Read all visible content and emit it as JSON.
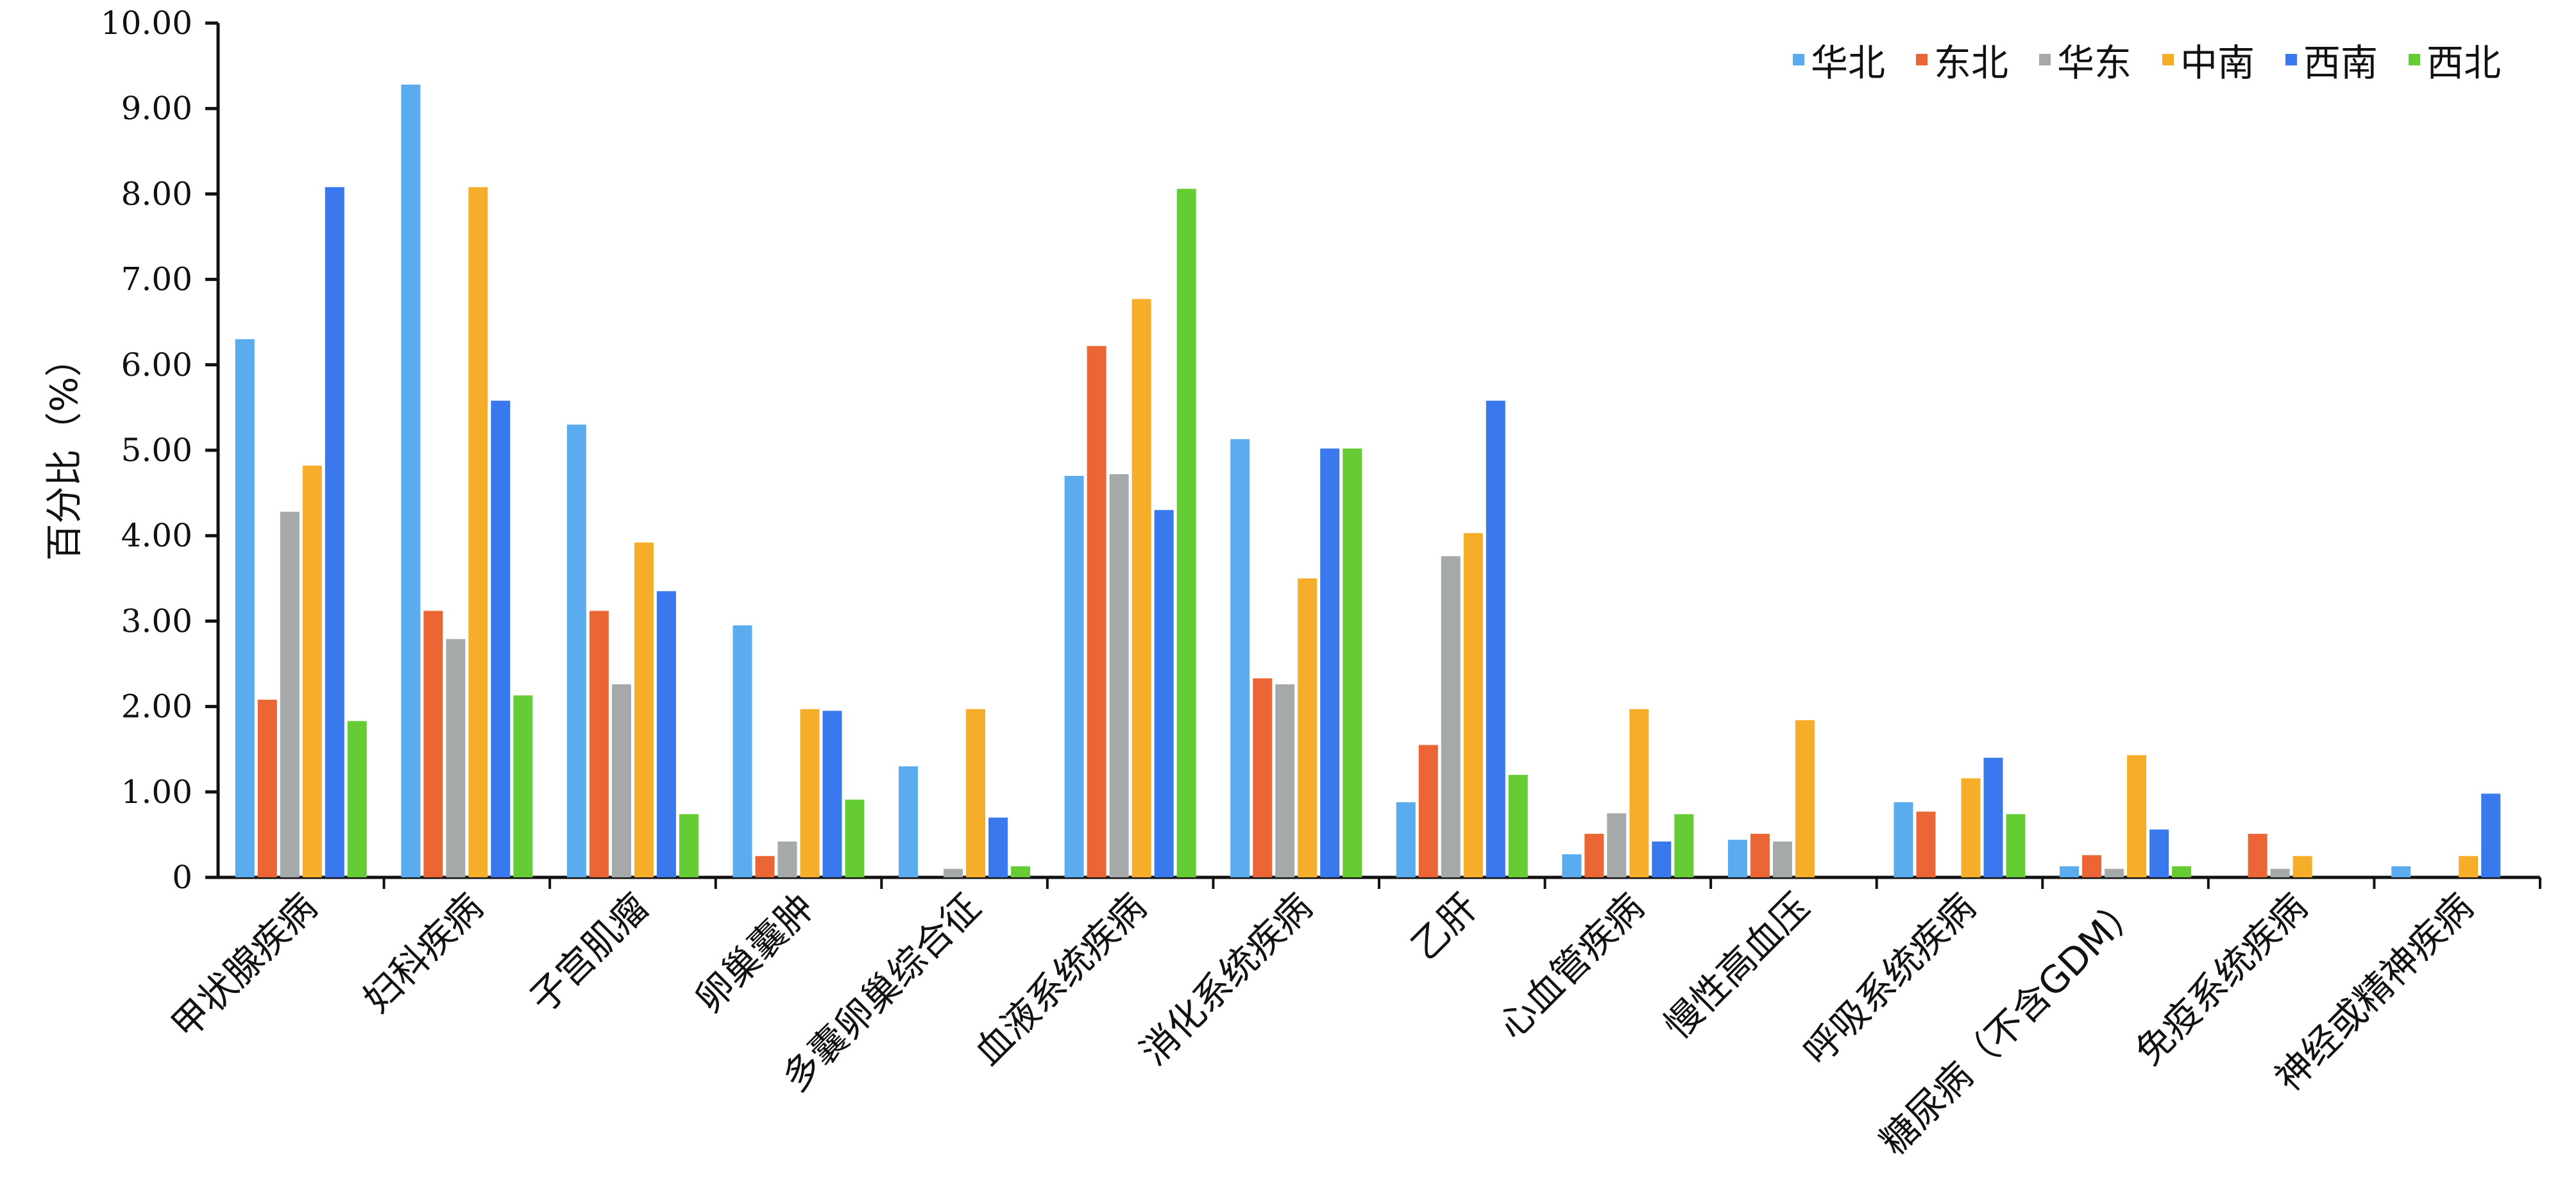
{
  "chart_data": {
    "type": "bar",
    "ylabel": "百分比（%）",
    "ylim": [
      0,
      10
    ],
    "yticks": [
      "0",
      "1.00",
      "2.00",
      "3.00",
      "4.00",
      "5.00",
      "6.00",
      "7.00",
      "8.00",
      "9.00",
      "10.00"
    ],
    "legend_position": "top-right",
    "categories": [
      "甲状腺疾病",
      "妇科疾病",
      "子宫肌瘤",
      "卵巢囊肿",
      "多囊卵巢综合征",
      "血液系统疾病",
      "消化系统疾病",
      "乙肝",
      "心血管疾病",
      "慢性高血压",
      "呼吸系统疾病",
      "糖尿病（不含GDM）",
      "免疫系统疾病",
      "神经或精神疾病"
    ],
    "series": [
      {
        "name": "华北",
        "color": "#5aacee",
        "values": [
          6.3,
          9.28,
          5.3,
          2.95,
          1.3,
          4.7,
          5.13,
          0.88,
          0.27,
          0.44,
          0.88,
          0.13,
          0,
          0.13
        ]
      },
      {
        "name": "东北",
        "color": "#ec6535",
        "values": [
          2.08,
          3.12,
          3.12,
          0.25,
          0,
          6.22,
          2.33,
          1.55,
          0.51,
          0.51,
          0.77,
          0.26,
          0.51,
          0
        ]
      },
      {
        "name": "华东",
        "color": "#a6a9a9",
        "values": [
          4.28,
          2.79,
          2.26,
          0.42,
          0.1,
          4.72,
          2.26,
          3.76,
          0.75,
          0.42,
          0,
          0.1,
          0.1,
          0
        ]
      },
      {
        "name": "中南",
        "color": "#f6ad29",
        "values": [
          4.82,
          8.08,
          3.92,
          1.97,
          1.97,
          6.77,
          3.5,
          4.03,
          1.97,
          1.84,
          1.16,
          1.43,
          0.25,
          0.25
        ]
      },
      {
        "name": "西南",
        "color": "#3a79ed",
        "values": [
          8.08,
          5.58,
          3.35,
          1.95,
          0.7,
          4.3,
          5.02,
          5.58,
          0.42,
          0,
          1.4,
          0.56,
          0,
          0.98
        ]
      },
      {
        "name": "西北",
        "color": "#66cc33",
        "values": [
          1.83,
          2.13,
          0.74,
          0.91,
          0.13,
          8.06,
          5.02,
          1.2,
          0.74,
          0,
          0.74,
          0.13,
          0,
          0
        ]
      }
    ]
  }
}
